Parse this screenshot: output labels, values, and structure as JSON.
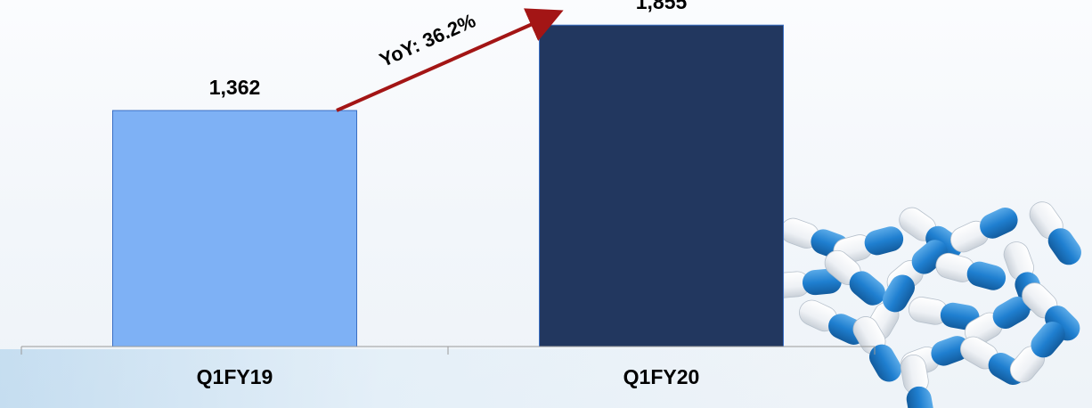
{
  "chart_data": {
    "type": "bar",
    "categories": [
      "Q1FY19",
      "Q1FY20"
    ],
    "values": [
      1362,
      1855
    ],
    "data_labels": [
      "1,362",
      "1,855"
    ],
    "bar_colors": [
      "#7eb1f5",
      "#22375f"
    ],
    "ylim": [
      0,
      2000
    ],
    "grid": false,
    "title": "",
    "xlabel": "",
    "ylabel": "",
    "annotation": {
      "text": "YoY: 36.2%",
      "arrow_color": "#a31515"
    }
  },
  "decoration": {
    "image": "capsules-pills",
    "capsule_colors": [
      "#1f7fd0",
      "#ffffff"
    ]
  }
}
